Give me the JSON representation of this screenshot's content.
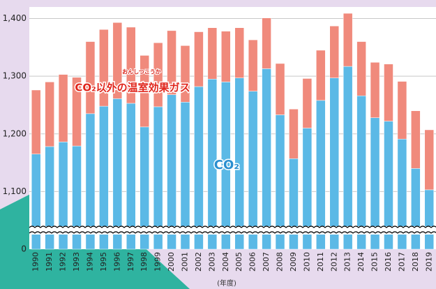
{
  "chart_data": {
    "type": "stacked_bar",
    "categories": [
      "1990",
      "1991",
      "1992",
      "1993",
      "1994",
      "1995",
      "1996",
      "1997",
      "1998",
      "1999",
      "2000",
      "2001",
      "2002",
      "2003",
      "2004",
      "2005",
      "2006",
      "2007",
      "2008",
      "2009",
      "2010",
      "2011",
      "2012",
      "2013",
      "2014",
      "2015",
      "2016",
      "2017",
      "2018",
      "2019"
    ],
    "series": [
      {
        "name": "CO₂",
        "color": "#5bb9e6",
        "values": [
          1165,
          1178,
          1186,
          1179,
          1235,
          1248,
          1261,
          1253,
          1212,
          1247,
          1268,
          1255,
          1282,
          1295,
          1290,
          1297,
          1274,
          1313,
          1233,
          1157,
          1210,
          1258,
          1297,
          1317,
          1266,
          1228,
          1222,
          1191,
          1140,
          1103
        ]
      },
      {
        "name": "CO₂以外の温室効果ガス",
        "color": "#f08a7c",
        "values": [
          111,
          112,
          117,
          119,
          125,
          133,
          132,
          132,
          124,
          111,
          111,
          98,
          95,
          89,
          88,
          87,
          89,
          88,
          89,
          86,
          86,
          87,
          90,
          92,
          94,
          96,
          99,
          100,
          100,
          104
        ]
      }
    ],
    "ruby": "おんしつこうか",
    "x_label": "(年度)",
    "ylim": [
      0,
      1420
    ],
    "axis_break": [
      0,
      1000
    ],
    "yticks": [
      0,
      {
        "value": 1100,
        "label": "1,100"
      },
      {
        "value": 1200,
        "label": "1,200"
      },
      {
        "value": 1300,
        "label": "1,300"
      },
      {
        "value": 1400,
        "label": "1,400"
      }
    ],
    "grid": true
  }
}
